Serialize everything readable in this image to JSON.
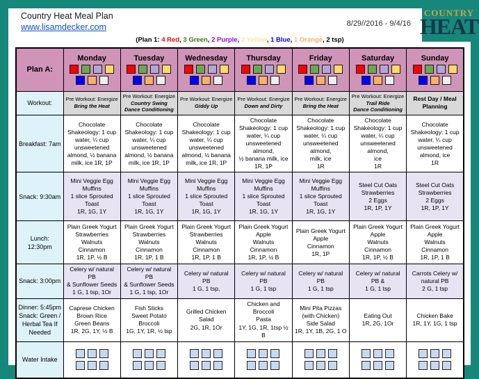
{
  "page": {
    "title": "Country Heat Meal Plan",
    "url": "www.lisamdecker.com",
    "date_range": "8/29//2016 - 9/4/16",
    "logo": {
      "line1": "COUNTRY",
      "line2": "HEAT"
    }
  },
  "legend": {
    "segments": [
      {
        "text": "(Plan 1: ",
        "color": "#000000"
      },
      {
        "text": "4 Red",
        "color": "#ff0000"
      },
      {
        "text": ", ",
        "color": "#000000"
      },
      {
        "text": "3 Green",
        "color": "#38761d"
      },
      {
        "text": ", ",
        "color": "#000000"
      },
      {
        "text": "2 Purple",
        "color": "#9900ff"
      },
      {
        "text": ", ",
        "color": "#000000"
      },
      {
        "text": "2 Yellow",
        "color": "#ffe599"
      },
      {
        "text": ", ",
        "color": "#000000"
      },
      {
        "text": "1 Blue",
        "color": "#0000ff"
      },
      {
        "text": ", ",
        "color": "#000000"
      },
      {
        "text": "1 Orange",
        "color": "#f6b26b"
      },
      {
        "text": ", ",
        "color": "#000000"
      },
      {
        "text": "2 tsp)",
        "color": "#000000"
      }
    ]
  },
  "colors": {
    "teal": "#17877b",
    "header_pink": "#cf94b8",
    "label_blue": "#def2f9",
    "workout_gray": "#d9d9d9",
    "snack_lavender": "#e7e3f2",
    "water_square": "#c6d9f0",
    "link_blue": "#1155cc",
    "logo_gold": "#c9a43d",
    "logo_dark": "#16384a"
  },
  "day_swatches": {
    "row1": [
      "#ff0000",
      "#6aa84f",
      "#b4a7d6",
      "#ffd966"
    ],
    "row2": [
      "#0000ff",
      "#f6b26b",
      "#efefef"
    ]
  },
  "water": {
    "boxes_per_day": 6
  },
  "row_labels": {
    "plan": "Plan A:",
    "workout": "Workout:",
    "breakfast": "Breakfast: 7am",
    "snack_am": "Snack: 9:30am",
    "lunch": "Lunch: 12:30pm",
    "snack_pm": "Snack: 3:00pm",
    "dinner": "Dinner: 5:45pm\nSnack: Green /\nHerbal Tea If\nNeeded",
    "water": "Water Intake"
  },
  "days": [
    {
      "name": "Monday",
      "workout_pre": "Pre Workout: Energize",
      "workout_name": "Bring the Heat",
      "breakfast": "Chocolate\nShakeology: 1 cup\nwater, ¼ cup\nunsweetened\nalmond, ½ banana\nmilk, ice 1R, 1P",
      "snack_am": "Mini Veggie Egg\nMuffins\n1 slice Sprouted\nToast\n1R, 1G, 1Y",
      "lunch": "Plain Greek Yogurt\nStrawberries\nWalnuts\nCinnamon\n1R, 1P, ½ B",
      "snack_pm": "Celery w/ natural PB\n& Sunflower Seeds\n1 G, 1 tsp, 1Or",
      "dinner": "Caprese Chicken\nBrown Rice\nGreen Beans\n1R, 2G, 1Y, ½ B"
    },
    {
      "name": "Tuesday",
      "workout_pre": "Pre Workout: Energize",
      "workout_name": "Country Swing\nDance Conditioning",
      "breakfast": "Chocolate\nShakeology: 1 cup\nwater, ¼ cup\nunsweetened\nalmond, ½ banana\nmilk, ice 1R, 1P",
      "snack_am": "Mini Veggie Egg\nMuffins\n1 slice Sprouted\nToast\n1R, 1G, 1Y",
      "lunch": "Plain Greek Yogurt\nStrawberries\nWalnuts\nCinnamon\n1R, 1P, 1 B",
      "snack_pm": "Celery w/ natural PB\n& Sunflower Seeds\n1 G, 1 tsp, 1Or",
      "dinner": "Fish Sticks\nSweet Potato\nBroccoli\n1G, 1Y, 1R, ½ tsp"
    },
    {
      "name": "Wednesday",
      "workout_pre": "Pre Workout: Energize",
      "workout_name": "Giddy Up",
      "breakfast": "Chocolate\nShakeology: 1 cup\nwater, ¼ cup\nunsweetened\nalmond, ½ banana\nmilk, ice 1R, 1P",
      "snack_am": "Mini Veggie Egg\nMuffins\n1 slice Sprouted\nToast\n1R, 1G, 1Y",
      "lunch": "Plain Greek Yogurt\nStrawberries\nWalnuts\nCinnamon\n1R, 1P, 1 B",
      "snack_pm": "Celery w/ natural PB\n1 G, 1 tsp,",
      "dinner": "Grilled Chicken Salad\n2G, 1R, 1Or"
    },
    {
      "name": "Thursday",
      "workout_pre": "Pre Workout: Energize",
      "workout_name": "Down and Dirty",
      "breakfast": "Chocolate\nShakeology: 1 cup\nwater, ¼ cup\nunsweetened almond,\n½ banana milk, ice\n1R, 1P",
      "snack_am": "Mini Veggie Egg\nMuffins\n1 slice Sprouted Toast\n1R, 1G, 1Y",
      "lunch": "Plain Greek Yogurt\nApple\nWalnuts\nCinnamon\n1R, 1P, ½ B",
      "snack_pm": "Celery w/ natural PB\n1 G, 1 tsp",
      "dinner": "Chicken and Broccoli\nPasta\n1Y, 1G, 1R, 1tsp ½ B"
    },
    {
      "name": "Friday",
      "workout_pre": "Pre Workout: Energize",
      "workout_name": "Bring the Heat",
      "breakfast": "Chocolate\nShakeology: 1 cup\nwater, ¼ cup\nunsweetened almond,\nmilk, ice\n1R",
      "snack_am": "Mini Veggie Egg\nMuffins\n1 slice Sprouted Toast\n1R, 1G, 1Y",
      "lunch": "Plain Greek Yogurt\nApple\nCinnamon\n1R, 1P",
      "snack_pm": "Celery w/ natural PB\n1 G, 1 tsp",
      "dinner": "Mini Pita Pizzas\n(with Chicken)\nSide Salad\n1R, 1Y, 1B, 2G, 1 O"
    },
    {
      "name": "Saturday",
      "workout_pre": "Pre Workout: Energize",
      "workout_name": "Trail Ride\nDance Conditioning",
      "breakfast": "Chocolate\nShakeology: 1 cup\nwater, ¼ cup\nunsweetened almond,\nice\n1R",
      "snack_am": "Steel Cut Oats\nStrawberries\n2 Eggs\n1R, 1P, 1Y",
      "lunch": "Plain Greek Yogurt\nApple\nWalnuts\nCinnamon\n1R, 1P, ½ B",
      "snack_pm": "Celery w/ natural PB &\n1 G, 1 tsp",
      "dinner": "Eating Out\n1R, 2G, 1Or"
    },
    {
      "name": "Sunday",
      "workout_pre": "",
      "workout_name": "Rest Day / Meal\nPlanning",
      "breakfast": "Chocolate\nShakeology: 1 cup\nwater, ¼ cup\nunsweetened\nalmond, ice\n1R",
      "snack_am": "Steel Cut Oats\nStrawberries\n2 Eggs\n1R, 1P, 1Y",
      "lunch": "Plain Greek Yogurt\nApple\nWalnuts\nCinnamon\n1R, 1P, 1 B",
      "snack_pm": "Carrots Celery w/\nnatural PB\n2 G, 1 tsp",
      "dinner": "Chicken Bake\n1R, 1Y, 1G, 1 tsp"
    }
  ]
}
